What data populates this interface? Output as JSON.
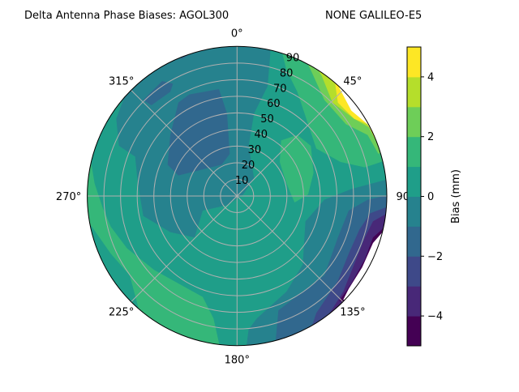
{
  "chart_data": {
    "type": "contour-polar",
    "title_left": "Delta Antenna Phase Biases: AGOL300",
    "title_right": "NONE GALILEO-E5",
    "theta_direction": "clockwise",
    "theta_zero": "top",
    "theta_ticks": [
      "0°",
      "45°",
      "90°",
      "135°",
      "180°",
      "225°",
      "270°",
      "315°"
    ],
    "r_ticks": [
      "10",
      "20",
      "30",
      "40",
      "50",
      "60",
      "70",
      "80",
      "90"
    ],
    "r_range": [
      0,
      90
    ],
    "grid": true,
    "levels": [
      -5,
      -4,
      -3,
      -2,
      -1,
      0,
      1,
      2,
      3,
      4,
      5
    ],
    "level_colors": [
      "#440154",
      "#482878",
      "#3e4989",
      "#31688e",
      "#26828e",
      "#1f9e89",
      "#35b779",
      "#6ece58",
      "#b5de2b",
      "#fde725"
    ],
    "colormap": "viridis",
    "colorbar": {
      "label": "Bias (mm)",
      "ticks": [
        "−4",
        "−2",
        "0",
        "2",
        "4"
      ],
      "tick_values": [
        -4,
        -2,
        0,
        2,
        4
      ],
      "range": [
        -5,
        5
      ],
      "placement": "right"
    },
    "regions_summary": [
      {
        "area": "north-east rim (≈30°–75° azimuth, high zenith)",
        "range": [
          1,
          5
        ],
        "note": "values exceed 5 at the rim (unfilled)"
      },
      {
        "area": "south-east rim (≈100°–145° azimuth, high zenith)",
        "range": [
          -5,
          -1
        ],
        "note": "values below -5 at the rim (unfilled)"
      },
      {
        "area": "north-west interior (≈300°–360° azimuth)",
        "range": [
          -2,
          0
        ]
      },
      {
        "area": "west / south-west band (≈190°–280° azimuth)",
        "range": [
          1,
          2
        ]
      },
      {
        "area": "centre and south",
        "range": [
          0,
          1
        ]
      }
    ]
  }
}
